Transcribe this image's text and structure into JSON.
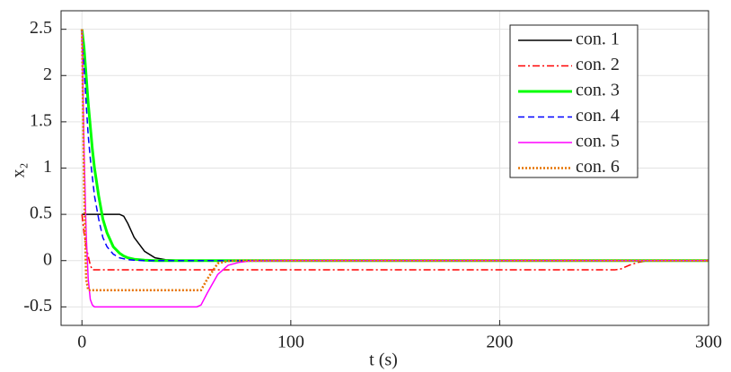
{
  "chart_data": {
    "type": "line",
    "xlabel": "t (s)",
    "ylabel": "x₂",
    "x": [
      0,
      1,
      2,
      3,
      4,
      5,
      6,
      8,
      10,
      12,
      15,
      18,
      20,
      22,
      25,
      30,
      35,
      40,
      50,
      55,
      57,
      60,
      65,
      70,
      75,
      80,
      100,
      150,
      200,
      250,
      255,
      258,
      262,
      266,
      270,
      275,
      300
    ],
    "series": [
      {
        "name": "con. 1",
        "color": "#000000",
        "dash": "solid",
        "width": 1.5,
        "values": [
          0.5,
          0.5,
          0.5,
          0.5,
          0.5,
          0.5,
          0.5,
          0.5,
          0.5,
          0.5,
          0.5,
          0.5,
          0.48,
          0.4,
          0.25,
          0.1,
          0.03,
          0.01,
          0,
          0,
          0,
          0,
          0,
          0,
          0,
          0,
          0,
          0,
          0,
          0,
          0,
          0,
          0,
          0,
          0,
          0,
          0
        ]
      },
      {
        "name": "con. 2",
        "color": "#ff0000",
        "dash": "dashdot",
        "width": 1.5,
        "values": [
          0.5,
          0.3,
          0.15,
          0.05,
          -0.05,
          -0.1,
          -0.1,
          -0.1,
          -0.1,
          -0.1,
          -0.1,
          -0.1,
          -0.1,
          -0.1,
          -0.1,
          -0.1,
          -0.1,
          -0.1,
          -0.1,
          -0.1,
          -0.1,
          -0.1,
          -0.1,
          -0.1,
          -0.1,
          -0.1,
          -0.1,
          -0.1,
          -0.1,
          -0.1,
          -0.1,
          -0.09,
          -0.05,
          -0.02,
          -0.005,
          0,
          0
        ]
      },
      {
        "name": "con. 3",
        "color": "#00ff00",
        "dash": "solid",
        "width": 3,
        "values": [
          2.5,
          2.3,
          2.0,
          1.7,
          1.45,
          1.2,
          1.0,
          0.7,
          0.45,
          0.3,
          0.15,
          0.08,
          0.05,
          0.03,
          0.015,
          0.005,
          0,
          0,
          0,
          0,
          0,
          0,
          0,
          0,
          0,
          0,
          0,
          0,
          0,
          0,
          0,
          0,
          0,
          0,
          0,
          0,
          0
        ]
      },
      {
        "name": "con. 4",
        "color": "#0000ff",
        "dash": "dashed",
        "width": 1.5,
        "values": [
          2.4,
          2.1,
          1.7,
          1.35,
          1.1,
          0.9,
          0.7,
          0.45,
          0.25,
          0.15,
          0.07,
          0.03,
          0.02,
          0.01,
          0.005,
          0,
          0,
          0,
          0,
          0,
          0,
          0,
          0,
          0,
          0,
          0,
          0,
          0,
          0,
          0,
          0,
          0,
          0,
          0,
          0,
          0,
          0
        ]
      },
      {
        "name": "con. 5",
        "color": "#ff00ff",
        "dash": "solid",
        "width": 1.5,
        "values": [
          2.5,
          1.2,
          0.3,
          -0.2,
          -0.42,
          -0.48,
          -0.5,
          -0.5,
          -0.5,
          -0.5,
          -0.5,
          -0.5,
          -0.5,
          -0.5,
          -0.5,
          -0.5,
          -0.5,
          -0.5,
          -0.5,
          -0.5,
          -0.48,
          -0.35,
          -0.15,
          -0.05,
          -0.02,
          -0.005,
          0,
          0,
          0,
          0,
          0,
          0,
          0,
          0,
          0,
          0,
          0
        ]
      },
      {
        "name": "con. 6",
        "color": "#e67300",
        "dash": "dotted",
        "width": 2.5,
        "values": [
          2.5,
          0.8,
          -0.2,
          -0.32,
          -0.32,
          -0.32,
          -0.32,
          -0.32,
          -0.32,
          -0.32,
          -0.32,
          -0.32,
          -0.32,
          -0.32,
          -0.32,
          -0.32,
          -0.32,
          -0.32,
          -0.32,
          -0.32,
          -0.32,
          -0.2,
          -0.03,
          -0.005,
          0,
          0,
          0,
          0,
          0,
          0,
          0,
          0,
          0,
          0,
          0,
          0,
          0
        ]
      }
    ],
    "xlim": [
      -10,
      300
    ],
    "ylim": [
      -0.7,
      2.7
    ],
    "xticks": [
      0,
      100,
      200,
      300
    ],
    "yticks": [
      -0.5,
      0,
      0.5,
      1,
      1.5,
      2,
      2.5
    ],
    "grid": true,
    "legend": "upper right"
  }
}
